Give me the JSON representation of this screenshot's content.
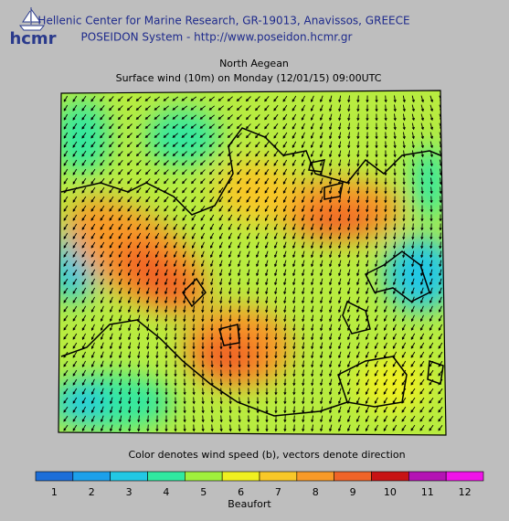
{
  "header": {
    "logo": "hcmr",
    "lines": [
      "Hellenic Center for Marine Research, GR-19013, Anavissos, GREECE",
      "POSEIDON System - http://www.poseidon.hcmr.gr"
    ]
  },
  "map": {
    "title": "North Aegean",
    "subtitle": "Surface wind (10m) on Monday (12/01/15) 09:00UTC",
    "caption": "Color denotes wind speed (b), vectors denote direction"
  },
  "legend": {
    "unit": "Beaufort",
    "items": [
      {
        "label": "1",
        "color": "#1c6ed8"
      },
      {
        "label": "2",
        "color": "#1ca0ea"
      },
      {
        "label": "3",
        "color": "#22c8e4"
      },
      {
        "label": "4",
        "color": "#30e8a0"
      },
      {
        "label": "5",
        "color": "#a0f03c"
      },
      {
        "label": "6",
        "color": "#f0f020"
      },
      {
        "label": "7",
        "color": "#f8c828"
      },
      {
        "label": "8",
        "color": "#f89a28"
      },
      {
        "label": "9",
        "color": "#f06428"
      },
      {
        "label": "10",
        "color": "#c81414"
      },
      {
        "label": "11",
        "color": "#b414b4"
      },
      {
        "label": "12",
        "color": "#f014e8"
      }
    ]
  }
}
